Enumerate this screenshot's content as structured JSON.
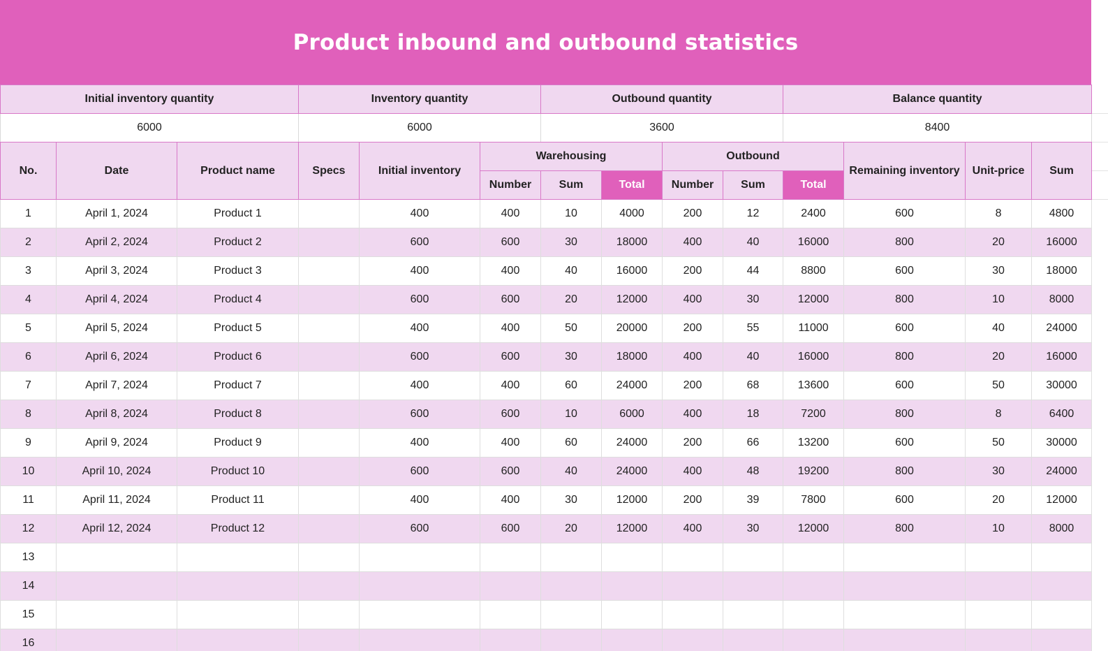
{
  "title": "Product inbound and outbound statistics",
  "summary": {
    "headers": [
      "Initial inventory quantity",
      "Inventory quantity",
      "Outbound quantity",
      "Balance quantity"
    ],
    "values": [
      "6000",
      "6000",
      "3600",
      "8400"
    ]
  },
  "header": {
    "no": "No.",
    "date": "Date",
    "product_name": "Product name",
    "specs": "Specs",
    "initial_inventory": "Initial inventory",
    "warehousing": "Warehousing",
    "outbound": "Outbound",
    "remaining_inventory": "Remaining inventory",
    "unit_price": "Unit-price",
    "sum": "Sum",
    "wh_sub": [
      "Number",
      "Sum",
      "Total"
    ],
    "ob_sub": [
      "Number",
      "Sum",
      "Total"
    ]
  },
  "colors": {
    "accent": "#e060bb",
    "band": "#f0d8f0",
    "border": "#d878c8"
  },
  "rows": [
    {
      "no": "1",
      "date": "April 1, 2024",
      "product": "Product 1",
      "specs": "",
      "initial": "400",
      "wh_number": "400",
      "wh_sum": "10",
      "wh_total": "4000",
      "ob_number": "200",
      "ob_sum": "12",
      "ob_total": "2400",
      "remaining": "600",
      "unit_price": "8",
      "sum": "4800"
    },
    {
      "no": "2",
      "date": "April 2, 2024",
      "product": "Product 2",
      "specs": "",
      "initial": "600",
      "wh_number": "600",
      "wh_sum": "30",
      "wh_total": "18000",
      "ob_number": "400",
      "ob_sum": "40",
      "ob_total": "16000",
      "remaining": "800",
      "unit_price": "20",
      "sum": "16000"
    },
    {
      "no": "3",
      "date": "April 3, 2024",
      "product": "Product 3",
      "specs": "",
      "initial": "400",
      "wh_number": "400",
      "wh_sum": "40",
      "wh_total": "16000",
      "ob_number": "200",
      "ob_sum": "44",
      "ob_total": "8800",
      "remaining": "600",
      "unit_price": "30",
      "sum": "18000"
    },
    {
      "no": "4",
      "date": "April 4, 2024",
      "product": "Product 4",
      "specs": "",
      "initial": "600",
      "wh_number": "600",
      "wh_sum": "20",
      "wh_total": "12000",
      "ob_number": "400",
      "ob_sum": "30",
      "ob_total": "12000",
      "remaining": "800",
      "unit_price": "10",
      "sum": "8000"
    },
    {
      "no": "5",
      "date": "April 5, 2024",
      "product": "Product 5",
      "specs": "",
      "initial": "400",
      "wh_number": "400",
      "wh_sum": "50",
      "wh_total": "20000",
      "ob_number": "200",
      "ob_sum": "55",
      "ob_total": "11000",
      "remaining": "600",
      "unit_price": "40",
      "sum": "24000"
    },
    {
      "no": "6",
      "date": "April 6, 2024",
      "product": "Product 6",
      "specs": "",
      "initial": "600",
      "wh_number": "600",
      "wh_sum": "30",
      "wh_total": "18000",
      "ob_number": "400",
      "ob_sum": "40",
      "ob_total": "16000",
      "remaining": "800",
      "unit_price": "20",
      "sum": "16000"
    },
    {
      "no": "7",
      "date": "April 7, 2024",
      "product": "Product 7",
      "specs": "",
      "initial": "400",
      "wh_number": "400",
      "wh_sum": "60",
      "wh_total": "24000",
      "ob_number": "200",
      "ob_sum": "68",
      "ob_total": "13600",
      "remaining": "600",
      "unit_price": "50",
      "sum": "30000"
    },
    {
      "no": "8",
      "date": "April 8, 2024",
      "product": "Product 8",
      "specs": "",
      "initial": "600",
      "wh_number": "600",
      "wh_sum": "10",
      "wh_total": "6000",
      "ob_number": "400",
      "ob_sum": "18",
      "ob_total": "7200",
      "remaining": "800",
      "unit_price": "8",
      "sum": "6400"
    },
    {
      "no": "9",
      "date": "April 9, 2024",
      "product": "Product 9",
      "specs": "",
      "initial": "400",
      "wh_number": "400",
      "wh_sum": "60",
      "wh_total": "24000",
      "ob_number": "200",
      "ob_sum": "66",
      "ob_total": "13200",
      "remaining": "600",
      "unit_price": "50",
      "sum": "30000"
    },
    {
      "no": "10",
      "date": "April 10, 2024",
      "product": "Product 10",
      "specs": "",
      "initial": "600",
      "wh_number": "600",
      "wh_sum": "40",
      "wh_total": "24000",
      "ob_number": "400",
      "ob_sum": "48",
      "ob_total": "19200",
      "remaining": "800",
      "unit_price": "30",
      "sum": "24000"
    },
    {
      "no": "11",
      "date": "April 11, 2024",
      "product": "Product 11",
      "specs": "",
      "initial": "400",
      "wh_number": "400",
      "wh_sum": "30",
      "wh_total": "12000",
      "ob_number": "200",
      "ob_sum": "39",
      "ob_total": "7800",
      "remaining": "600",
      "unit_price": "20",
      "sum": "12000"
    },
    {
      "no": "12",
      "date": "April 12, 2024",
      "product": "Product 12",
      "specs": "",
      "initial": "600",
      "wh_number": "600",
      "wh_sum": "20",
      "wh_total": "12000",
      "ob_number": "400",
      "ob_sum": "30",
      "ob_total": "12000",
      "remaining": "800",
      "unit_price": "10",
      "sum": "8000"
    },
    {
      "no": "13",
      "date": "",
      "product": "",
      "specs": "",
      "initial": "",
      "wh_number": "",
      "wh_sum": "",
      "wh_total": "",
      "ob_number": "",
      "ob_sum": "",
      "ob_total": "",
      "remaining": "",
      "unit_price": "",
      "sum": ""
    },
    {
      "no": "14",
      "date": "",
      "product": "",
      "specs": "",
      "initial": "",
      "wh_number": "",
      "wh_sum": "",
      "wh_total": "",
      "ob_number": "",
      "ob_sum": "",
      "ob_total": "",
      "remaining": "",
      "unit_price": "",
      "sum": ""
    },
    {
      "no": "15",
      "date": "",
      "product": "",
      "specs": "",
      "initial": "",
      "wh_number": "",
      "wh_sum": "",
      "wh_total": "",
      "ob_number": "",
      "ob_sum": "",
      "ob_total": "",
      "remaining": "",
      "unit_price": "",
      "sum": ""
    },
    {
      "no": "16",
      "date": "",
      "product": "",
      "specs": "",
      "initial": "",
      "wh_number": "",
      "wh_sum": "",
      "wh_total": "",
      "ob_number": "",
      "ob_sum": "",
      "ob_total": "",
      "remaining": "",
      "unit_price": "",
      "sum": ""
    }
  ]
}
